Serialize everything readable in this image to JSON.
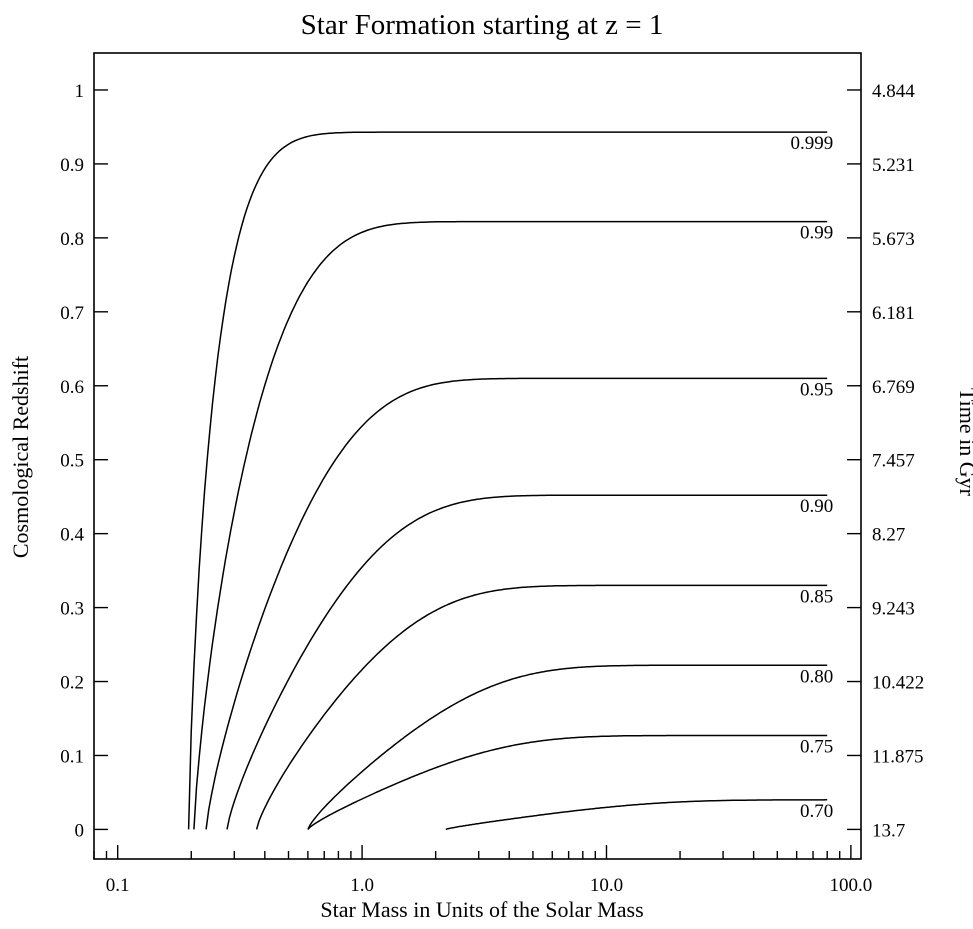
{
  "chart_data": {
    "type": "line",
    "title": "Star Formation starting at z = 1",
    "xlabel": "Star Mass in Units of the Solar Mass",
    "ylabel": "Cosmological Redshift",
    "y2label": "Time in Gyr",
    "xscale": "log",
    "xlim": [
      0.08,
      110
    ],
    "ylim": [
      -0.04,
      1.05
    ],
    "x_ticks": [
      0.1,
      1.0,
      10.0,
      100.0
    ],
    "x_tick_labels": [
      "0.1",
      "1.0",
      "10.0",
      "100.0"
    ],
    "y_ticks": [
      0,
      0.1,
      0.2,
      0.3,
      0.4,
      0.5,
      0.6,
      0.7,
      0.8,
      0.9,
      1
    ],
    "y_tick_labels": [
      "0",
      "0.1",
      "0.2",
      "0.3",
      "0.4",
      "0.5",
      "0.6",
      "0.7",
      "0.8",
      "0.9",
      "1"
    ],
    "y2_tick_labels": [
      "13.7",
      "11.875",
      "10.422",
      "9.243",
      "8.27",
      "7.457",
      "6.769",
      "6.181",
      "5.673",
      "5.231",
      "4.844"
    ],
    "grid": false,
    "series": [
      {
        "name": "0.999",
        "x_start": 0.195,
        "z_max": 0.943,
        "mid": 0.3,
        "k": 4.0
      },
      {
        "name": "0.99",
        "x_start": 0.205,
        "z_max": 0.822,
        "mid": 0.48,
        "k": 2.7
      },
      {
        "name": "0.95",
        "x_start": 0.23,
        "z_max": 0.61,
        "mid": 0.75,
        "k": 2.2
      },
      {
        "name": "0.90",
        "x_start": 0.28,
        "z_max": 0.452,
        "mid": 1.0,
        "k": 2.0
      },
      {
        "name": "0.85",
        "x_start": 0.37,
        "z_max": 0.33,
        "mid": 1.3,
        "k": 1.9
      },
      {
        "name": "0.80",
        "x_start": 0.6,
        "z_max": 0.222,
        "mid": 2.2,
        "k": 1.7
      },
      {
        "name": "0.75",
        "x_start": 0.6,
        "z_max": 0.127,
        "mid": 2.5,
        "k": 1.7
      },
      {
        "name": "0.70",
        "x_start": 2.2,
        "z_max": 0.04,
        "mid": 8.0,
        "k": 1.4
      }
    ],
    "x_end": 80
  }
}
